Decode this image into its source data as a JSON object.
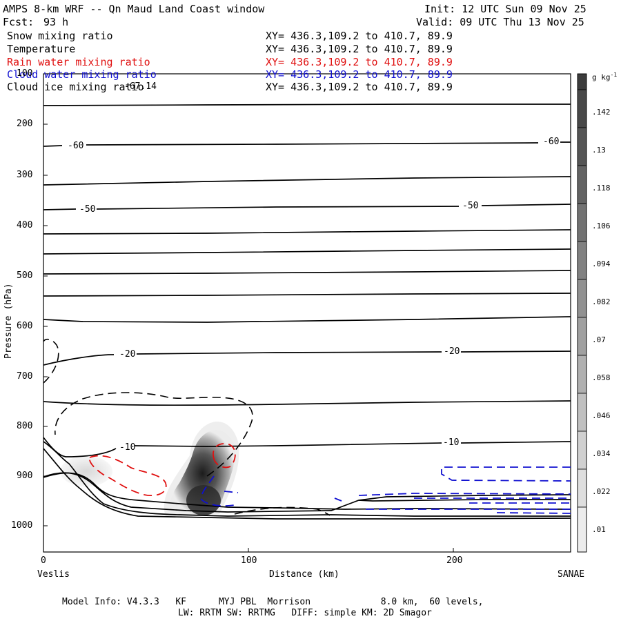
{
  "header": {
    "title": "AMPS 8-km WRF -- Qn Maud Land Coast window",
    "init": "Init: 12 UTC Sun 09 Nov 25",
    "fcst_label": "Fcst:",
    "fcst_value": "93 h",
    "valid": "Valid: 09 UTC Thu 13 Nov 25"
  },
  "fields": [
    {
      "name": "Snow mixing ratio",
      "xy": "XY= 436.3,109.2 to 410.7, 89.9",
      "color": "#000000"
    },
    {
      "name": "Temperature",
      "xy": "XY= 436.3,109.2 to 410.7, 89.9",
      "color": "#000000"
    },
    {
      "name": "Rain water mixing ratio",
      "xy": "XY= 436.3,109.2 to 410.7, 89.9",
      "color": "#e01010"
    },
    {
      "name": "Cloud water mixing ratio",
      "xy": "XY= 436.3,109.2 to 410.7, 89.9",
      "color": "#1010d0"
    },
    {
      "name": "Cloud ice mixing ratio",
      "xy": "XY= 436.3,109.2 to 410.7, 89.9",
      "color": "#000000"
    }
  ],
  "overlap_label": "-67.14",
  "footer": {
    "line1": "Model Info: V4.3.3   KF      MYJ PBL  Morrison             8.0 km,  60 levels,",
    "line2": "LW: RRTM SW: RRTMG   DIFF: simple KM: 2D Smagor"
  },
  "chart_data": {
    "type": "heatmap",
    "title": "AMPS 8-km WRF -- Qn Maud Land Coast window",
    "xlabel": "Distance (km)",
    "ylabel": "Pressure (hPa)",
    "xlim": [
      0,
      258
    ],
    "ylim": [
      100,
      1050
    ],
    "xticks": [
      0,
      100,
      200
    ],
    "yticks": [
      100,
      200,
      300,
      400,
      500,
      600,
      700,
      800,
      900,
      1000
    ],
    "x_endpoints": {
      "left": "Veslis",
      "right": "SANAE"
    },
    "colorbar": {
      "unit": "g kg",
      "unit_exp": "-1",
      "ticks": [
        ".01",
        ".022",
        ".034",
        ".046",
        ".058",
        ".07",
        ".082",
        ".094",
        ".106",
        ".118",
        ".13",
        ".142"
      ]
    },
    "temperature_contours": [
      {
        "label": "-60",
        "label_x": [
          15,
          246
        ]
      },
      {
        "label": "-50",
        "label_x": [
          20,
          208
        ]
      },
      {
        "label": "-20",
        "label_x": [
          40,
          200
        ]
      },
      {
        "label": "-10",
        "label_x": [
          40,
          198
        ]
      }
    ]
  }
}
